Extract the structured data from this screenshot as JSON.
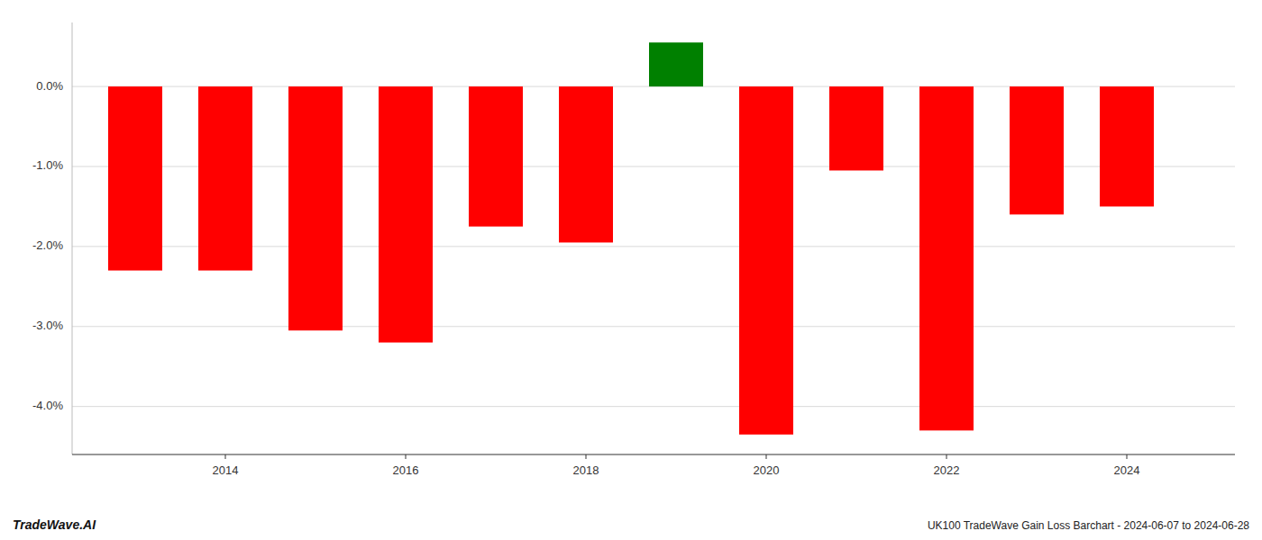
{
  "chart_data": {
    "type": "bar",
    "title": "UK100 TradeWave Gain Loss Barchart - 2024-06-07 to 2024-06-28",
    "annotations": [
      "TradeWave.AI"
    ],
    "x": [
      2013,
      2014,
      2015,
      2016,
      2017,
      2018,
      2019,
      2020,
      2021,
      2022,
      2023,
      2024
    ],
    "values": [
      -2.3,
      -2.3,
      -3.05,
      -3.2,
      -1.75,
      -1.95,
      0.55,
      -4.35,
      -1.05,
      -4.3,
      -1.6,
      -1.5
    ],
    "colors": [
      "red",
      "red",
      "red",
      "red",
      "red",
      "red",
      "green",
      "red",
      "red",
      "red",
      "red",
      "red"
    ],
    "xlim": [
      2012.3,
      2025.2
    ],
    "xticks": [
      2014,
      2016,
      2018,
      2020,
      2022,
      2024
    ],
    "ylim": [
      -4.6,
      0.8
    ],
    "yticks": [
      {
        "value": 0.0,
        "label": "0.0%"
      },
      {
        "value": -1.0,
        "label": "-1.0%"
      },
      {
        "value": -2.0,
        "label": "-2.0%"
      },
      {
        "value": -3.0,
        "label": "-3.0%"
      },
      {
        "value": -4.0,
        "label": "-4.0%"
      }
    ],
    "grid": true
  }
}
